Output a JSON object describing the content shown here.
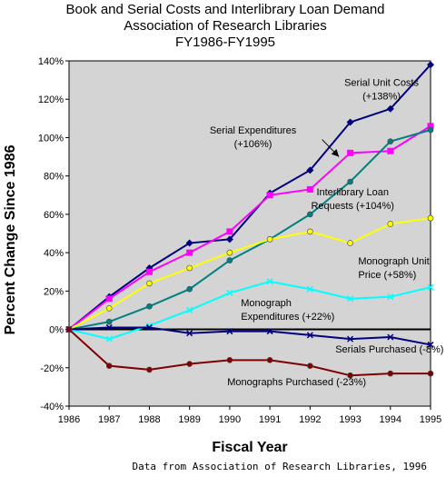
{
  "chart_data": {
    "type": "line",
    "title_lines": [
      "Book and Serial Costs and Interlibrary Loan Demand",
      "Association of Research Libraries",
      "FY1986-FY1995"
    ],
    "xlabel": "Fiscal Year",
    "ylabel": "Percent Change Since 1986",
    "x": [
      1986,
      1987,
      1988,
      1989,
      1990,
      1991,
      1992,
      1993,
      1994,
      1995
    ],
    "x_tick_labels": [
      "1986",
      "1987",
      "1988",
      "1989",
      "1990",
      "1991",
      "1992",
      "1993",
      "1994",
      "1995"
    ],
    "ylim": [
      -40,
      140
    ],
    "y_ticks": [
      -40,
      -20,
      0,
      20,
      40,
      60,
      80,
      100,
      120,
      140
    ],
    "y_tick_labels": [
      "-40%",
      "-20%",
      "0%",
      "20%",
      "40%",
      "60%",
      "80%",
      "100%",
      "120%",
      "140%"
    ],
    "grid": false,
    "background": "#d4d4d4",
    "series": [
      {
        "name": "Serial Unit Costs (+138%)",
        "color": "#00007f",
        "marker": "diamond",
        "values": [
          0,
          17,
          32,
          45,
          47,
          71,
          83,
          108,
          115,
          138
        ]
      },
      {
        "name": "Serial Expenditures (+106%)",
        "color": "#ff00ff",
        "marker": "square",
        "values": [
          0,
          16,
          30,
          40,
          51,
          70,
          73,
          92,
          93,
          106
        ]
      },
      {
        "name": "Interlibrary Loan Requests (+104%)",
        "color": "#008080",
        "marker": "circle",
        "values": [
          0,
          4,
          12,
          21,
          36,
          47,
          60,
          77,
          98,
          104
        ]
      },
      {
        "name": "Monograph Unit Price (+58%)",
        "color": "#ffff00",
        "marker": "circle",
        "values": [
          0,
          11,
          24,
          32,
          40,
          47,
          51,
          45,
          55,
          58
        ]
      },
      {
        "name": "Monograph Expenditures (+22%)",
        "color": "#00ffff",
        "marker": "x",
        "values": [
          0,
          -5,
          2,
          10,
          19,
          25,
          21,
          16,
          17,
          22
        ]
      },
      {
        "name": "Serials Purchased (-8%)",
        "color": "#000080",
        "marker": "x",
        "values": [
          0,
          1,
          1,
          -2,
          -1,
          -1,
          -3,
          -5,
          -4,
          -8
        ]
      },
      {
        "name": "Monographs Purchased (-23%)",
        "color": "#800000",
        "marker": "circle",
        "values": [
          0,
          -19,
          -21,
          -18,
          -16,
          -16,
          -19,
          -24,
          -23,
          -23
        ]
      }
    ],
    "annotations": [
      {
        "lines": [
          "Serial Unit Costs",
          "(+138%)"
        ],
        "x": 1993.78,
        "y": 127,
        "anchor": "middle"
      },
      {
        "lines": [
          "Serial Expenditures",
          "(+106%)"
        ],
        "x": 1990.58,
        "y": 102,
        "anchor": "middle"
      },
      {
        "lines": [
          "Interlibrary Loan",
          "Requests (+104%)"
        ],
        "x": 1993.06,
        "y": 70,
        "anchor": "middle"
      },
      {
        "lines": [
          "Monograph Unit",
          "Price (+58%)"
        ],
        "x": 1993.2,
        "y": 34,
        "anchor": "start"
      },
      {
        "lines": [
          "Monograph",
          "Expenditures (+22%)"
        ],
        "x": 1990.28,
        "y": 12,
        "anchor": "start"
      },
      {
        "lines": [
          "Serials Purchased (-8%)"
        ],
        "x": 1992.63,
        "y": -12,
        "anchor": "start"
      },
      {
        "lines": [
          "Monographs Purchased (-23%)"
        ],
        "x": 1989.94,
        "y": -29,
        "anchor": "start"
      }
    ],
    "arrow": {
      "from": [
        1992.3,
        99
      ],
      "to": [
        1992.72,
        90
      ]
    },
    "source": "Data from Association of Research Libraries, 1996"
  }
}
